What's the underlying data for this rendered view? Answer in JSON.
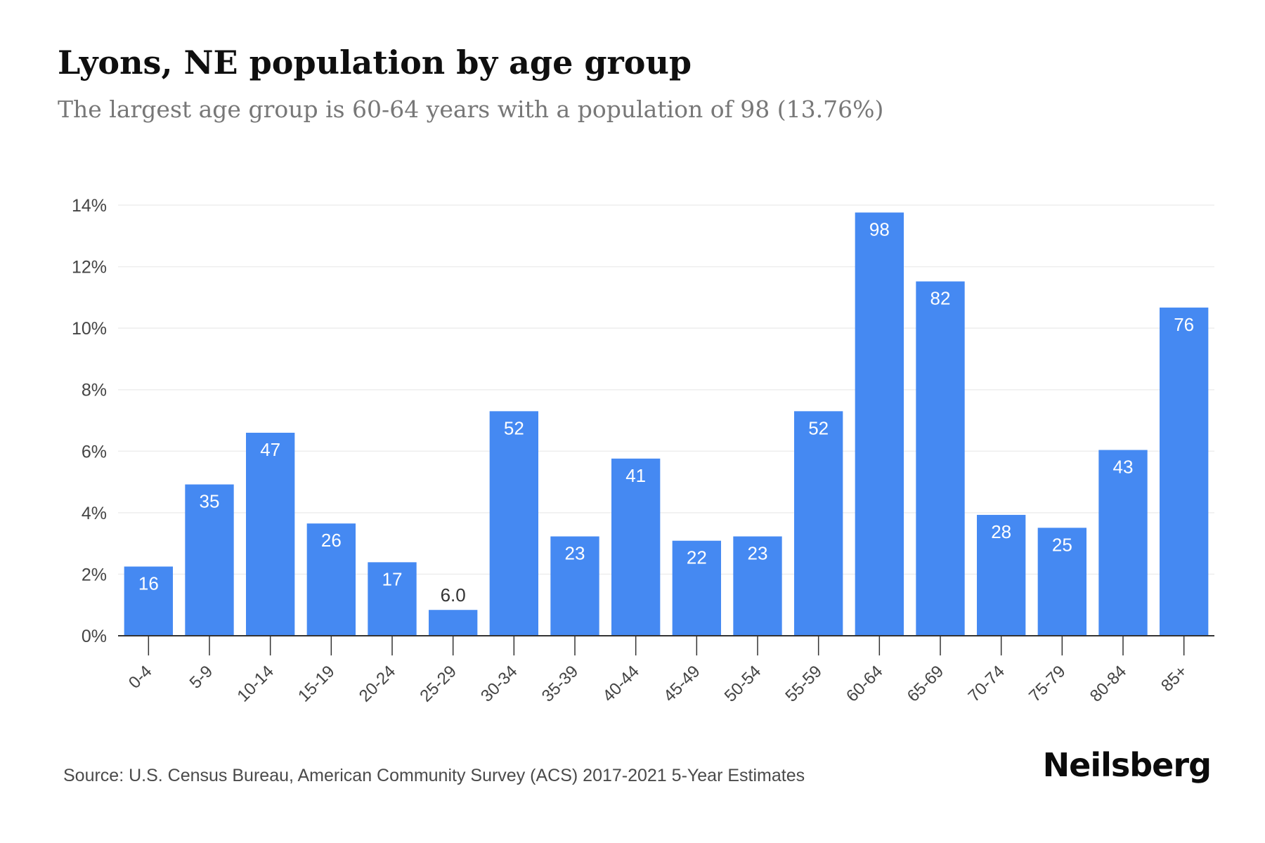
{
  "title": "Lyons, NE population by age group",
  "subtitle": "The largest age group is 60-64 years with a population of 98 (13.76%)",
  "source": "Source: U.S. Census Bureau, American Community Survey (ACS) 2017-2021 5-Year Estimates",
  "brand": "Neilsberg",
  "colors": {
    "bar": "#4589f2",
    "bar_label": "#ffffff",
    "outside_label": "#333333",
    "grid": "#eeeeee",
    "axis": "#333333"
  },
  "chart_data": {
    "type": "bar",
    "categories": [
      "0-4",
      "5-9",
      "10-14",
      "15-19",
      "20-24",
      "25-29",
      "30-34",
      "35-39",
      "40-44",
      "45-49",
      "50-54",
      "55-59",
      "60-64",
      "65-69",
      "70-74",
      "75-79",
      "80-84",
      "85+"
    ],
    "values": [
      2.25,
      4.92,
      6.6,
      3.65,
      2.39,
      0.84,
      7.3,
      3.23,
      5.76,
      3.09,
      3.23,
      7.3,
      13.76,
      11.52,
      3.93,
      3.51,
      6.04,
      10.67
    ],
    "data_labels": [
      "16",
      "35",
      "47",
      "26",
      "17",
      "6.0",
      "52",
      "23",
      "41",
      "22",
      "23",
      "52",
      "98",
      "82",
      "28",
      "25",
      "43",
      "76"
    ],
    "ylim": [
      0,
      14
    ],
    "yticks": [
      "0%",
      "2%",
      "4%",
      "6%",
      "8%",
      "10%",
      "12%",
      "14%"
    ],
    "grid": true,
    "xlabel": "",
    "ylabel": ""
  }
}
